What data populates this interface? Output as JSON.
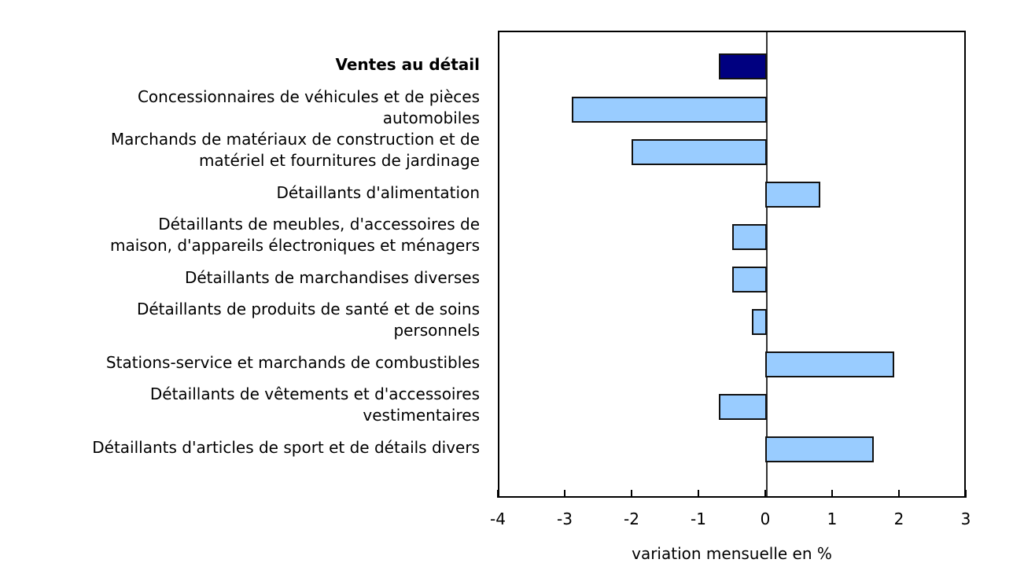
{
  "chart_data": {
    "type": "bar",
    "orientation": "horizontal",
    "title": "",
    "xlabel": "variation mensuelle en %",
    "ylabel": "",
    "xlim": [
      -4,
      3
    ],
    "xticks": [
      -4,
      -3,
      -2,
      -1,
      0,
      1,
      2,
      3
    ],
    "xtick_labels": [
      "-4",
      "-3",
      "-2",
      "-1",
      "0",
      "1",
      "2",
      "3"
    ],
    "grid": false,
    "categories": [
      "Ventes au détail",
      "Concessionnaires de véhicules et de pièces automobiles",
      "Marchands de matériaux de construction et de matériel et fournitures de jardinage",
      "Détaillants d'alimentation",
      "Détaillants de meubles, d'accessoires de maison, d'appareils électroniques et ménagers",
      "Détaillants de marchandises diverses",
      "Détaillants de produits de santé et de soins personnels",
      "Stations-service et marchands de combustibles",
      "Détaillants de vêtements et d'accessoires vestimentaires",
      "Détaillants d'articles de sport et de détails divers"
    ],
    "values": [
      -0.7,
      -2.9,
      -2.0,
      0.8,
      -0.5,
      -0.5,
      -0.2,
      1.9,
      -0.7,
      1.6
    ],
    "colors": {
      "total": "#000080",
      "subsector": "#99ccff",
      "outline": "#111111"
    }
  },
  "labels": [
    {
      "lines": [
        "Ventes au détail"
      ],
      "bold": true
    },
    {
      "lines": [
        "Concessionnaires de véhicules et de pièces",
        "automobiles"
      ]
    },
    {
      "lines": [
        "Marchands de matériaux de construction et de",
        "matériel et fournitures de jardinage"
      ]
    },
    {
      "lines": [
        "Détaillants d'alimentation"
      ]
    },
    {
      "lines": [
        "Détaillants de meubles, d'accessoires de",
        "maison, d'appareils électroniques et ménagers"
      ]
    },
    {
      "lines": [
        "Détaillants de marchandises diverses"
      ]
    },
    {
      "lines": [
        "Détaillants de produits de santé et de soins",
        "personnels"
      ]
    },
    {
      "lines": [
        "Stations-service et marchands de combustibles"
      ]
    },
    {
      "lines": [
        "Détaillants de vêtements et d'accessoires",
        "vestimentaires"
      ]
    },
    {
      "lines": [
        "Détaillants d'articles de sport et de détails divers"
      ]
    }
  ]
}
